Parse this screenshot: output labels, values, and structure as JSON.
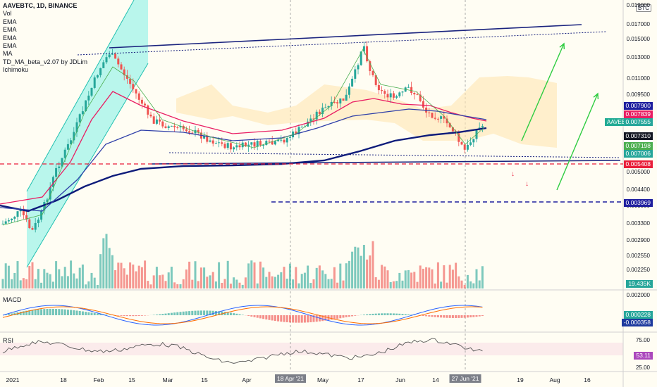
{
  "legend": {
    "symbol": "AAVEBTC, 1D, BINANCE",
    "lines": [
      "Vol",
      "EMA",
      "EMA",
      "EMA",
      "EMA",
      "MA",
      "TD_MA_beta_v2.07 by JDLim",
      "Ichimoku"
    ]
  },
  "panes": {
    "macd_label": "MACD",
    "rsi_label": "RSI"
  },
  "price_axis_ticks": [
    "0.019000",
    "0.017000",
    "0.015000",
    "0.013000",
    "0.011000",
    "0.009500",
    "0.005000",
    "0.004400",
    "0.003800",
    "0.003300",
    "0.002900",
    "0.002550",
    "0.002250",
    "0.002000"
  ],
  "macd_axis_ticks": [
    "0.002000",
    "0.000228",
    "-0.000358"
  ],
  "rsi_axis_ticks": [
    "75.00",
    "53.11",
    "25.00"
  ],
  "badges": [
    {
      "text": "0.007900",
      "color": "#1e1e9e"
    },
    {
      "text": "0.007839",
      "color": "#e91e63"
    },
    {
      "text": "0.007555",
      "color": "#26a69a"
    },
    {
      "text": "0.007310",
      "color": "#131722"
    },
    {
      "text": "0.007198",
      "color": "#4caf50"
    },
    {
      "text": "0.007006",
      "color": "#26a69a"
    },
    {
      "text": "0.005408",
      "color": "#e91e3a"
    },
    {
      "text": "0.003969",
      "color": "#1e1e9e"
    },
    {
      "text": "19.435K",
      "color": "#26a69a"
    },
    {
      "text": "0.000228",
      "color": "#26a69a"
    },
    {
      "text": "-0.000358",
      "color": "#1e3a9e"
    },
    {
      "text": "53.11",
      "color": "#ab47bc"
    }
  ],
  "symbol_tag": "AAVEBTC",
  "currency_tag": "BTC",
  "time_axis": [
    {
      "label": "2021",
      "hl": false
    },
    {
      "label": "18",
      "hl": false
    },
    {
      "label": "Feb",
      "hl": false
    },
    {
      "label": "15",
      "hl": false
    },
    {
      "label": "Mar",
      "hl": false
    },
    {
      "label": "15",
      "hl": false
    },
    {
      "label": "Apr",
      "hl": false
    },
    {
      "label": "18 Apr '21",
      "hl": true
    },
    {
      "label": "May",
      "hl": false
    },
    {
      "label": "17",
      "hl": false
    },
    {
      "label": "Jun",
      "hl": false
    },
    {
      "label": "14",
      "hl": false
    },
    {
      "label": "27 Jun '21",
      "hl": true
    },
    {
      "label": "19",
      "hl": false
    },
    {
      "label": "Aug",
      "hl": false
    },
    {
      "label": "16",
      "hl": false
    }
  ],
  "colors": {
    "up": "#26a69a",
    "down": "#ef5350",
    "ema_red": "#e91e63",
    "ema_navy": "#0d1b7a",
    "ema_blue": "#2f3fa8",
    "trend": "#1a237e",
    "arrow": "#2ecc40"
  },
  "chart_data": {
    "type": "candlestick",
    "symbol": "AAVEBTC",
    "interval": "1D",
    "exchange": "BINANCE",
    "last_price": 0.007555,
    "levels": {
      "support_red": 0.005408,
      "target_blue": 0.003969
    },
    "ema_values": [
      0.0079,
      0.007839,
      0.00731,
      0.007198,
      0.007006
    ],
    "volume_last": "19.435K",
    "macd_last": [
      0.000228,
      -0.000358
    ],
    "rsi_last": 53.11,
    "x_range": [
      "2021-01-01",
      "2021-08-25"
    ]
  }
}
